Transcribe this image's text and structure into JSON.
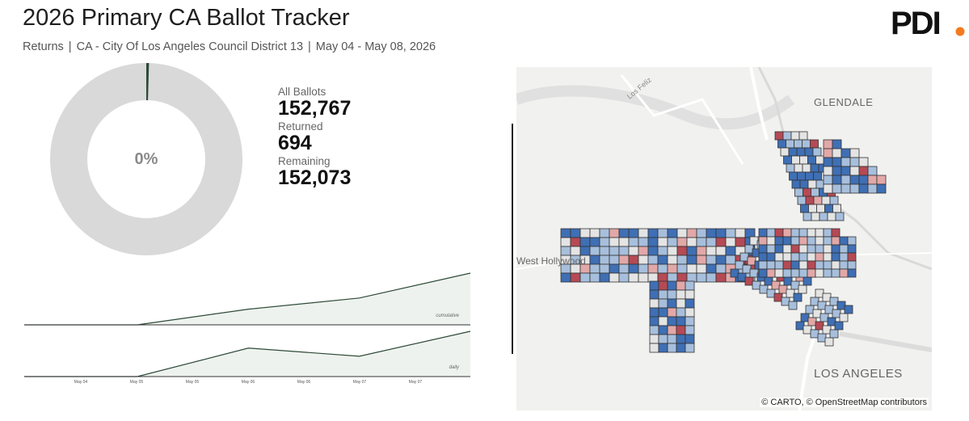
{
  "header": {
    "title": "2026 Primary CA Ballot Tracker",
    "subtitle_type": "Returns",
    "subtitle_area": "CA - City Of Los Angeles Council District 13",
    "subtitle_dates": "May 04 - May 08, 2026",
    "separator": "|"
  },
  "logo": {
    "text": "PDI",
    "dot_color": "#f47a20",
    "name": "pdi-logo"
  },
  "donut": {
    "percent_label": "0%",
    "returned_fraction": 0.0045,
    "track_color": "#d9d9d9",
    "fill_color": "#2d4a37"
  },
  "stats": {
    "all_label": "All Ballots",
    "all_value": "152,767",
    "returned_label": "Returned",
    "returned_value": "694",
    "remaining_label": "Remaining",
    "remaining_value": "152,073"
  },
  "chart_data": [
    {
      "type": "area",
      "title": "",
      "series_label": "cumulative",
      "x": [
        "May 04",
        "May 05",
        "May 06",
        "May 07",
        "May 08"
      ],
      "values": [
        0,
        0,
        210,
        360,
        694
      ],
      "ylim": [
        0,
        694
      ],
      "color": "#2d4a37"
    },
    {
      "type": "area",
      "title": "",
      "series_label": "daily",
      "x": [
        "May 04",
        "May 05",
        "May 06",
        "May 07",
        "May 08"
      ],
      "values": [
        0,
        0,
        210,
        150,
        334
      ],
      "ylim": [
        0,
        334
      ],
      "color": "#2d4a37"
    }
  ],
  "axis": {
    "ticks": [
      "May 04",
      "May 05",
      "May 05",
      "May 06",
      "May 06",
      "May 07",
      "May 07"
    ]
  },
  "map": {
    "labels": {
      "glendale": "GLENDALE",
      "los_angeles": "LOS ANGELES",
      "west_hollywood": "West Hollywood",
      "los_feliz": "Los Feliz"
    },
    "attribution": "© CARTO, © OpenStreetMap contributors",
    "colors": {
      "high": "#b54a55",
      "mid_high": "#e2a8a8",
      "neutral": "#e4e4e4",
      "mid_low": "#a7bfdc",
      "low": "#3f6fb4"
    }
  }
}
